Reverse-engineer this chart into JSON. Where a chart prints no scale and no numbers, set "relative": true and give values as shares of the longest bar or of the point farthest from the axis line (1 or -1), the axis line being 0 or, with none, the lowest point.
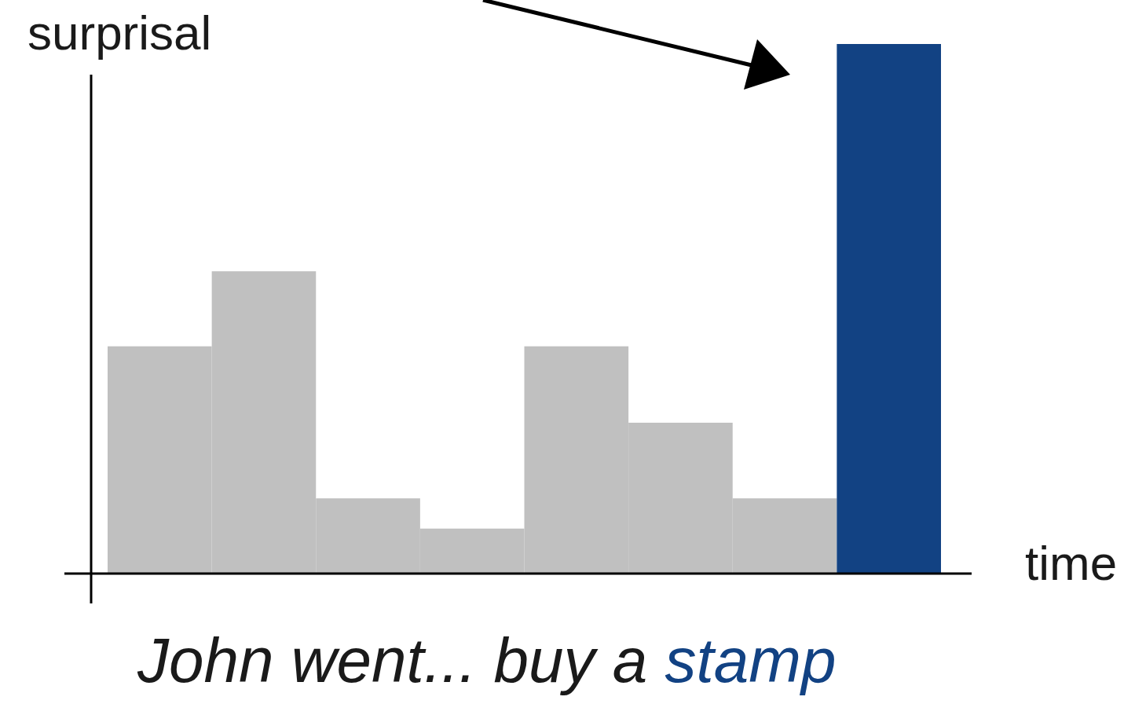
{
  "chart_data": {
    "type": "bar",
    "relative": true,
    "ylabel": "surprisal",
    "xlabel": "time",
    "categories": [
      null,
      null,
      null,
      null,
      null,
      null,
      null,
      null
    ],
    "values": [
      0.429,
      0.571,
      0.142,
      0.085,
      0.429,
      0.285,
      0.142,
      1
    ],
    "colors": [
      "#c0c0c0",
      "#c0c0c0",
      "#c0c0c0",
      "#c0c0c0",
      "#c0c0c0",
      "#c0c0c0",
      "#c0c0c0",
      "#124283"
    ],
    "annotations": [
      "John went... buy a",
      "stamp"
    ],
    "grid": false
  }
}
